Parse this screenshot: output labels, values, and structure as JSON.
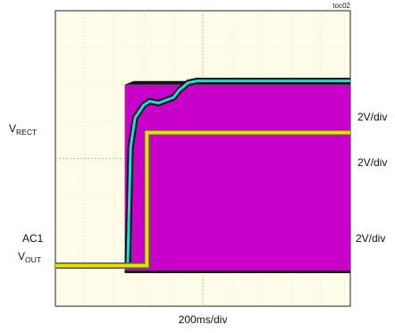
{
  "chart_data": {
    "type": "line",
    "title": "",
    "tag": "toc02",
    "xlabel": "200ms/div",
    "grid": true,
    "x_divisions": 10,
    "y_divisions": 8,
    "colors": {
      "background": "#fffde8",
      "grid": "#c8c8b8",
      "vrect": "#22d8e0",
      "ac1": "#c800c8",
      "vout": "#e8e000"
    },
    "channels": [
      {
        "name_main": "V",
        "name_sub": "RECT",
        "scale": "2V/div",
        "x_div": [
          0,
          2.45,
          2.55,
          2.7,
          3.0,
          3.2,
          3.5,
          4.0,
          4.2,
          4.5,
          4.8,
          5.5,
          10
        ],
        "y_div": [
          0.0,
          0.0,
          3.2,
          4.0,
          4.35,
          4.45,
          4.4,
          4.55,
          4.75,
          4.95,
          5.0,
          5.0,
          5.0
        ]
      },
      {
        "name_main": "AC1",
        "name_sub": "",
        "scale": "2V/div",
        "on_div": 2.35,
        "low_div": 0.0,
        "high_div": 4.9
      },
      {
        "name_main": "V",
        "name_sub": "OUT",
        "scale": "2V/div",
        "x_div": [
          0,
          3.1,
          3.1,
          10
        ],
        "y_div": [
          0.0,
          0.0,
          3.6,
          3.6
        ]
      }
    ]
  }
}
